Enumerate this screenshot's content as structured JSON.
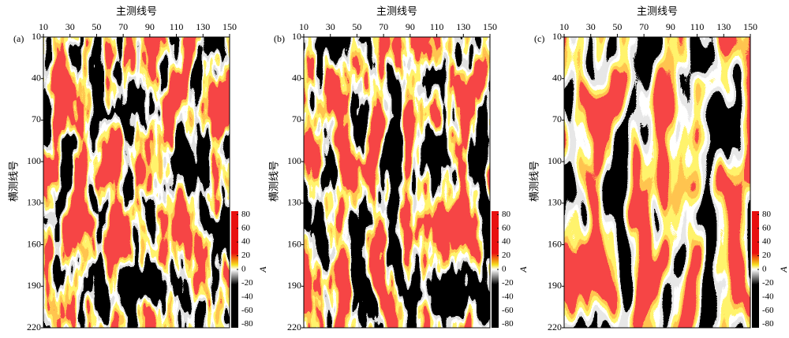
{
  "chart_data": [
    {
      "type": "heatmap",
      "panel_label": "(a)",
      "x_label": "主测线号",
      "y_label": "横测线号",
      "colorbar_label": "A",
      "xlim": [
        10,
        150
      ],
      "ylim": [
        10,
        220
      ],
      "y_reversed": true,
      "xticks": [
        10,
        30,
        50,
        70,
        90,
        110,
        130,
        150
      ],
      "yticks": [
        10,
        40,
        70,
        100,
        130,
        160,
        190,
        220
      ],
      "clim": [
        -85,
        85
      ],
      "cticks": [
        80,
        60,
        40,
        20,
        0,
        -20,
        -40,
        -60,
        -80
      ]
    },
    {
      "type": "heatmap",
      "panel_label": "(b)",
      "x_label": "主测线号",
      "y_label": "横测线号",
      "colorbar_label": "A",
      "xlim": [
        10,
        150
      ],
      "ylim": [
        10,
        220
      ],
      "y_reversed": true,
      "xticks": [
        10,
        30,
        50,
        70,
        90,
        110,
        130,
        150
      ],
      "yticks": [
        10,
        40,
        70,
        100,
        130,
        160,
        190,
        220
      ],
      "clim": [
        -85,
        85
      ],
      "cticks": [
        80,
        60,
        40,
        20,
        0,
        -20,
        -40,
        -60,
        -80
      ]
    },
    {
      "type": "heatmap",
      "panel_label": "(c)",
      "x_label": "主测线号",
      "y_label": "横测线号",
      "colorbar_label": "A",
      "xlim": [
        10,
        150
      ],
      "ylim": [
        10,
        220
      ],
      "y_reversed": true,
      "xticks": [
        10,
        30,
        50,
        70,
        90,
        110,
        130,
        150
      ],
      "yticks": [
        10,
        40,
        70,
        100,
        130,
        160,
        190,
        220
      ],
      "clim": [
        -85,
        85
      ],
      "cticks": [
        80,
        60,
        40,
        20,
        0,
        -20,
        -40,
        -60,
        -80
      ]
    }
  ]
}
